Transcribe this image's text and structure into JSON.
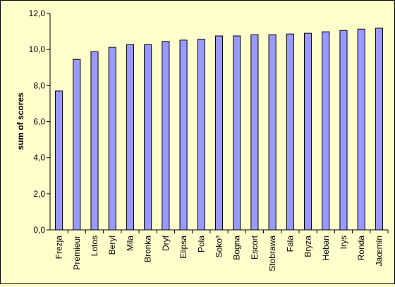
{
  "chart_data": {
    "type": "bar",
    "title": "",
    "xlabel": "",
    "ylabel": "sum of scores",
    "ylim": [
      0,
      12
    ],
    "yticks": [
      "0,0",
      "2,0",
      "4,0",
      "6,0",
      "8,0",
      "10,0",
      "12,0"
    ],
    "grid": false,
    "legend": "none",
    "bar_color": "#9999ff",
    "background_color": "#ffffcc",
    "categories": [
      "Frezja",
      "Premieur",
      "Lotos",
      "Beryl",
      "Mila",
      "Bronka",
      "Dryf",
      "Elipsa",
      "Pola",
      "Soko³",
      "Bogna",
      "Escort",
      "Stobrawa",
      "Fala",
      "Bryza",
      "Heban",
      "Irys",
      "Ronda",
      "Jaœmin"
    ],
    "values": [
      7.7,
      9.45,
      9.88,
      10.12,
      10.27,
      10.27,
      10.44,
      10.52,
      10.57,
      10.75,
      10.75,
      10.82,
      10.82,
      10.86,
      10.9,
      10.98,
      11.05,
      11.13,
      11.18
    ]
  }
}
